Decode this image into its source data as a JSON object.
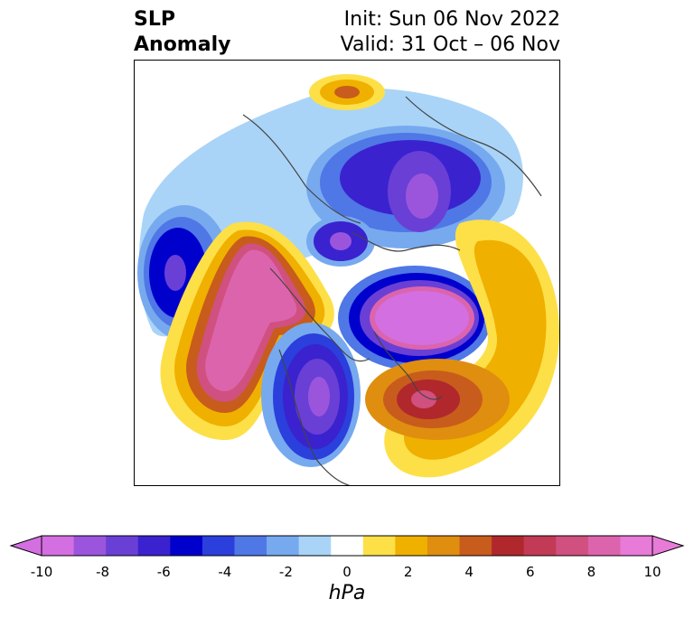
{
  "title": {
    "left_line1": "SLP",
    "left_line2": "Anomaly",
    "right_line1": "Init: Sun 06 Nov 2022",
    "right_line2": "Valid: 31 Oct – 06 Nov"
  },
  "colorbar": {
    "units": "hPa",
    "ticks": [
      "-10",
      "-8",
      "-6",
      "-4",
      "-2",
      "0",
      "2",
      "4",
      "6",
      "8",
      "10"
    ],
    "colors": [
      "#d36fe0",
      "#9b55dc",
      "#6a3fd6",
      "#3a22cf",
      "#0000cc",
      "#2a3fdc",
      "#4f77e6",
      "#77a9ef",
      "#a9d4f7",
      "#ffffff",
      "#fde047",
      "#f0b000",
      "#df8e10",
      "#c85c1c",
      "#b0282c",
      "#c23a55",
      "#d05080",
      "#dc64ad",
      "#e87ad8"
    ],
    "under_color": "#d36fe0",
    "over_color": "#e87ad8"
  },
  "map_legend_colors": {
    "strong_negative": "#9b55dc",
    "strong_positive": "#e87ad8"
  }
}
